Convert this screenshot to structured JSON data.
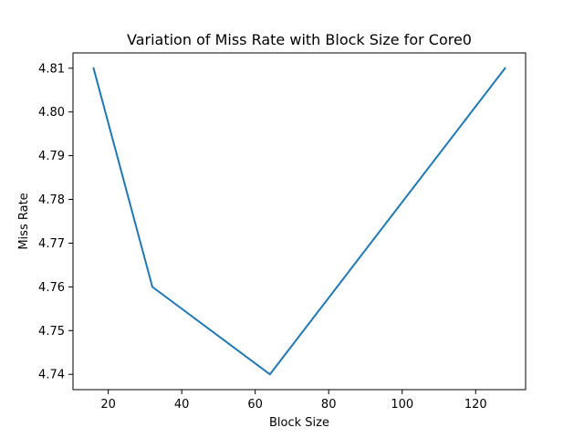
{
  "chart_data": {
    "type": "line",
    "title": "Variation of Miss Rate with Block Size for Core0",
    "xlabel": "Block Size",
    "ylabel": "Miss Rate",
    "x": [
      16,
      32,
      64,
      128
    ],
    "series": [
      {
        "values": [
          4.81,
          4.76,
          4.74,
          4.81
        ],
        "color": "#1f77b4"
      }
    ],
    "xlim": [
      10.4,
      133.6
    ],
    "ylim": [
      4.7365,
      4.8135
    ],
    "xticks": [
      20,
      40,
      60,
      80,
      100,
      120
    ],
    "xtick_labels": [
      "20",
      "40",
      "60",
      "80",
      "100",
      "120"
    ],
    "yticks": [
      4.74,
      4.75,
      4.76,
      4.77,
      4.78,
      4.79,
      4.8,
      4.81
    ],
    "ytick_labels": [
      "4.74",
      "4.75",
      "4.76",
      "4.77",
      "4.78",
      "4.79",
      "4.80",
      "4.81"
    ],
    "grid": false,
    "legend": "none"
  }
}
